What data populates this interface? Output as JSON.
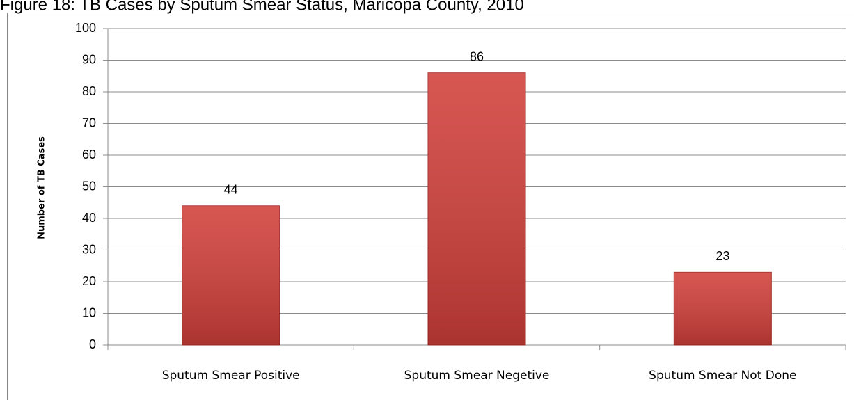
{
  "chart_data": {
    "type": "bar",
    "title": "Figure 18: TB Cases by Sputum Smear Status, Maricopa County,  2010",
    "y_label": "Number of TB Cases",
    "categories": [
      "Sputum Smear Positive",
      "Sputum Smear Negetive",
      "Sputum Smear Not Done"
    ],
    "values": [
      44,
      86,
      23
    ],
    "color": "#d13f3a",
    "ylim": [
      0,
      100
    ],
    "yticks": [
      0,
      10,
      20,
      30,
      40,
      50,
      60,
      70,
      80,
      90,
      100
    ],
    "grid": true
  }
}
